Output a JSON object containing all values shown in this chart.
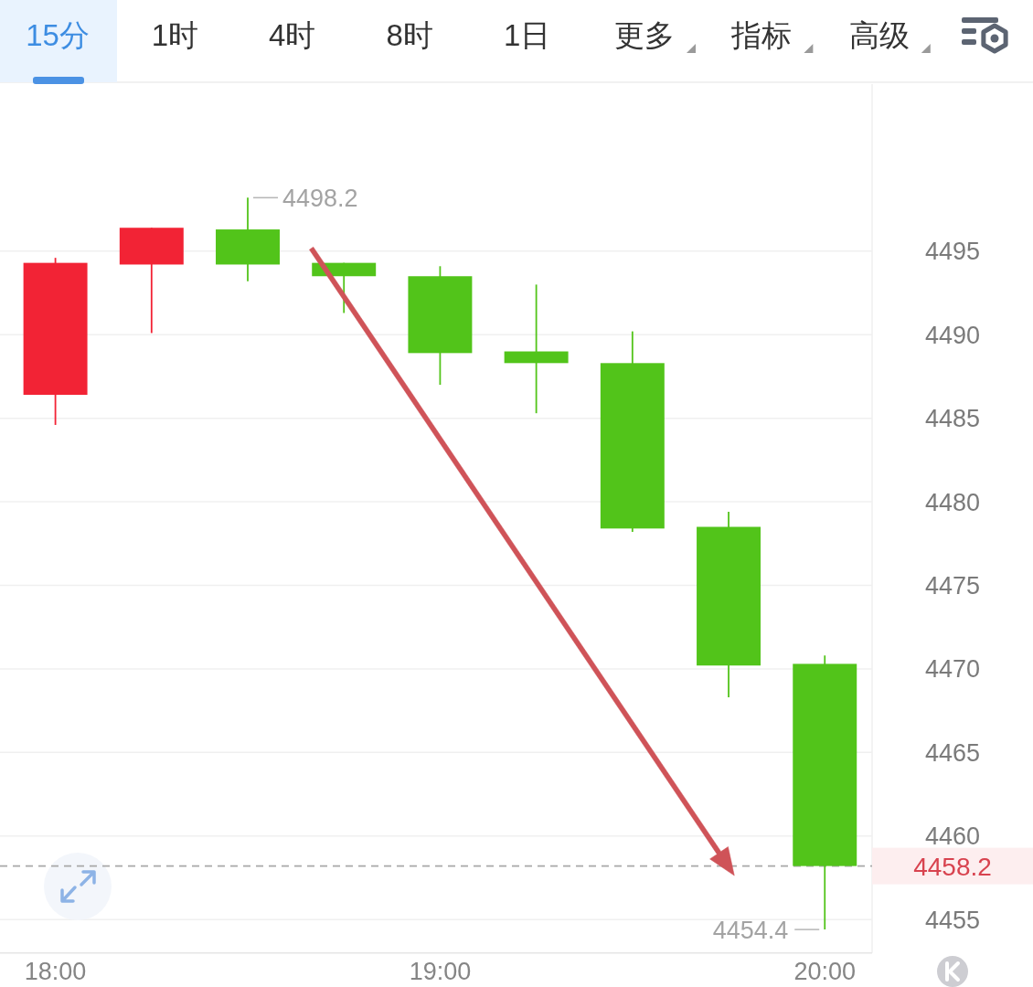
{
  "chart_data": {
    "type": "candlestick",
    "x": [
      18,
      18.25,
      18.5,
      18.75,
      19,
      19.25,
      19.5,
      19.75,
      20
    ],
    "ohlc": [
      [
        4486.4,
        4494.6,
        4484.6,
        4494.3
      ],
      [
        4494.2,
        4496.4,
        4490.1,
        4496.4
      ],
      [
        4496.3,
        4498.2,
        4493.2,
        4494.2
      ],
      [
        4494.3,
        4494.3,
        4491.3,
        4493.5
      ],
      [
        4493.5,
        4494.1,
        4487.0,
        4488.9
      ],
      [
        4489.0,
        4493.0,
        4485.3,
        4488.3
      ],
      [
        4488.3,
        4490.2,
        4478.2,
        4478.4
      ],
      [
        4478.5,
        4479.4,
        4468.3,
        4470.2
      ],
      [
        4470.3,
        4470.8,
        4454.4,
        4458.2
      ]
    ],
    "colors": [
      "#f22335",
      "#f22335",
      "#52c41a",
      "#52c41a",
      "#52c41a",
      "#52c41a",
      "#52c41a",
      "#52c41a",
      "#52c41a"
    ],
    "xlim": [
      17.856,
      20.123
    ],
    "ylim": [
      4453,
      4505
    ],
    "xticks": [
      {
        "value": 18,
        "label": "18:00"
      },
      {
        "value": 19,
        "label": "19:00"
      },
      {
        "value": 20,
        "label": "20:00"
      }
    ],
    "yticks": [
      4455,
      4460,
      4465,
      4470,
      4475,
      4480,
      4485,
      4490,
      4495
    ],
    "grid": "y",
    "ref_lines": [
      {
        "axis": "y",
        "value": 4458.2,
        "label": "4458.2",
        "color": "#a8a8a8",
        "line_style": "dashed"
      }
    ],
    "annotations": [
      "15分",
      "1时",
      "4时",
      "8时",
      "1日",
      "更多",
      "指标",
      "高级",
      {
        "text": "4498.2",
        "x": 18.5,
        "y": 4498.2
      },
      {
        "text": "4454.4",
        "x": 20,
        "y": 4454.4
      }
    ]
  }
}
